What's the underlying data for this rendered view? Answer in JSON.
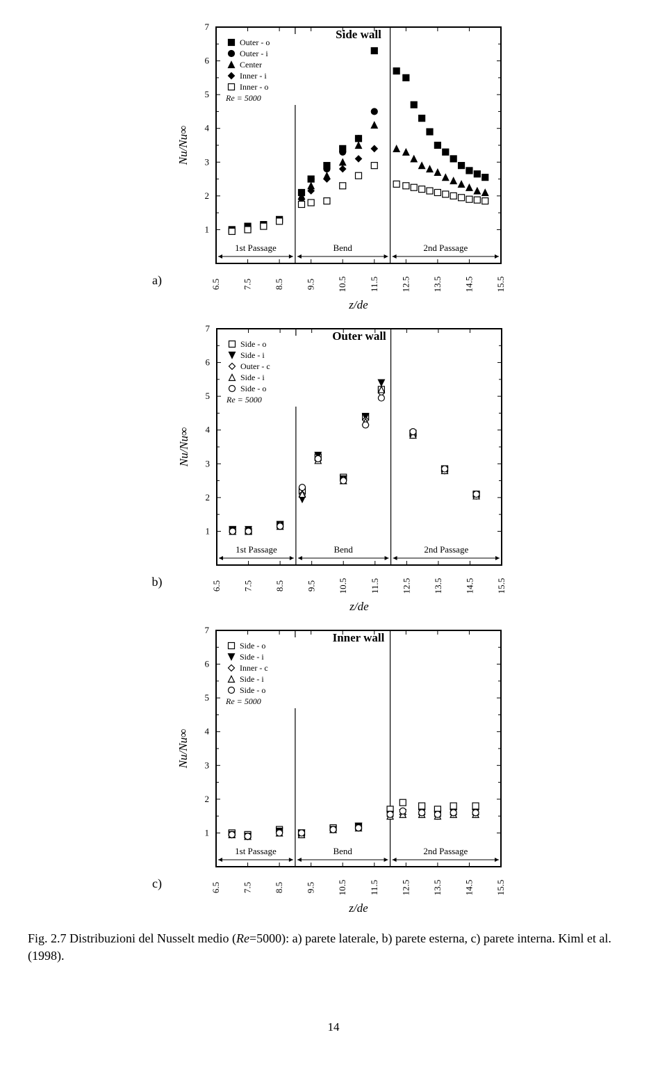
{
  "page_number": "14",
  "caption_html": "Fig. 2.7 Distribuzioni del Nusselt medio (Re=5000): a) parete laterale, b) parete esterna, c) parete interna. Kiml et al. (1998).",
  "caption_prefix": "Fig. 2.7 Distribuzioni del Nusselt medio (",
  "caption_re": "Re",
  "caption_mid": "=5000): a) parete laterale, b) parete esterna, c) parete interna. Kiml et al. (1998).",
  "common": {
    "xlabel": "z/de",
    "ylabel": "Nu/Nu∞",
    "xlim": [
      6.5,
      15.5
    ],
    "ylim": [
      0,
      7
    ],
    "xticks": [
      6.5,
      7.5,
      8.5,
      9.5,
      10.5,
      11.5,
      12.5,
      13.5,
      14.5,
      15.5
    ],
    "yticks": [
      1,
      2,
      3,
      4,
      5,
      6,
      7
    ],
    "region_dividers": [
      9.0,
      12.0
    ],
    "regions": [
      {
        "label": "1st Passage",
        "from": 6.5,
        "to": 9.0
      },
      {
        "label": "Bend",
        "from": 9.0,
        "to": 12.0
      },
      {
        "label": "2nd Passage",
        "from": 12.0,
        "to": 15.5
      }
    ],
    "background_color": "#ffffff",
    "grid_color": "#000000",
    "label_fontsize": 17,
    "tick_fontsize": 13,
    "title_fontsize": 17,
    "legend_fontsize": 12
  },
  "panels": {
    "a": {
      "label": "a)",
      "title": "Side wall",
      "re_text": "Re = 5000",
      "legend": [
        {
          "label": "Outer - o",
          "marker": "square",
          "fill": "#000000"
        },
        {
          "label": "Outer - i",
          "marker": "circle",
          "fill": "#000000"
        },
        {
          "label": "Center",
          "marker": "triangle",
          "fill": "#000000"
        },
        {
          "label": "Inner - i",
          "marker": "diamond",
          "fill": "#000000"
        },
        {
          "label": "Inner - o",
          "marker": "square",
          "fill": "none"
        }
      ],
      "series": [
        {
          "marker": "square",
          "fill": "#000000",
          "pts": [
            [
              7.0,
              1.0
            ],
            [
              7.5,
              1.1
            ],
            [
              8.0,
              1.15
            ],
            [
              8.5,
              1.3
            ],
            [
              9.2,
              2.1
            ],
            [
              9.5,
              2.5
            ],
            [
              10.0,
              2.9
            ],
            [
              10.5,
              3.4
            ],
            [
              11.0,
              3.7
            ],
            [
              11.5,
              6.3
            ],
            [
              12.2,
              5.7
            ],
            [
              12.5,
              5.5
            ],
            [
              12.75,
              4.7
            ],
            [
              13.0,
              4.3
            ],
            [
              13.25,
              3.9
            ],
            [
              13.5,
              3.5
            ],
            [
              13.75,
              3.3
            ],
            [
              14.0,
              3.1
            ],
            [
              14.25,
              2.9
            ],
            [
              14.5,
              2.75
            ],
            [
              14.75,
              2.65
            ],
            [
              15.0,
              2.55
            ]
          ]
        },
        {
          "marker": "circle",
          "fill": "#000000",
          "pts": [
            [
              9.2,
              2.1
            ],
            [
              9.5,
              2.5
            ],
            [
              10.0,
              2.8
            ],
            [
              10.5,
              3.3
            ],
            [
              11.0,
              3.7
            ],
            [
              11.5,
              4.5
            ]
          ]
        },
        {
          "marker": "triangle",
          "fill": "#000000",
          "pts": [
            [
              9.2,
              2.0
            ],
            [
              9.5,
              2.3
            ],
            [
              10.0,
              2.6
            ],
            [
              10.5,
              3.0
            ],
            [
              11.0,
              3.5
            ],
            [
              11.5,
              4.1
            ],
            [
              12.2,
              3.4
            ],
            [
              12.5,
              3.3
            ],
            [
              12.75,
              3.1
            ],
            [
              13.0,
              2.9
            ],
            [
              13.25,
              2.8
            ],
            [
              13.5,
              2.7
            ],
            [
              13.75,
              2.55
            ],
            [
              14.0,
              2.45
            ],
            [
              14.25,
              2.35
            ],
            [
              14.5,
              2.25
            ],
            [
              14.75,
              2.15
            ],
            [
              15.0,
              2.1
            ]
          ]
        },
        {
          "marker": "diamond",
          "fill": "#000000",
          "pts": [
            [
              9.2,
              1.9
            ],
            [
              9.5,
              2.15
            ],
            [
              10.0,
              2.5
            ],
            [
              10.5,
              2.8
            ],
            [
              11.0,
              3.1
            ],
            [
              11.5,
              3.4
            ]
          ]
        },
        {
          "marker": "square",
          "fill": "none",
          "pts": [
            [
              7.0,
              0.95
            ],
            [
              7.5,
              1.0
            ],
            [
              8.0,
              1.1
            ],
            [
              8.5,
              1.25
            ],
            [
              9.2,
              1.75
            ],
            [
              9.5,
              1.8
            ],
            [
              10.0,
              1.85
            ],
            [
              10.5,
              2.3
            ],
            [
              11.0,
              2.6
            ],
            [
              11.5,
              2.9
            ],
            [
              12.2,
              2.35
            ],
            [
              12.5,
              2.3
            ],
            [
              12.75,
              2.25
            ],
            [
              13.0,
              2.2
            ],
            [
              13.25,
              2.15
            ],
            [
              13.5,
              2.1
            ],
            [
              13.75,
              2.05
            ],
            [
              14.0,
              2.0
            ],
            [
              14.25,
              1.95
            ],
            [
              14.5,
              1.9
            ],
            [
              14.75,
              1.88
            ],
            [
              15.0,
              1.85
            ]
          ]
        }
      ]
    },
    "b": {
      "label": "b)",
      "title": "Outer wall",
      "re_text": "Re = 5000",
      "legend": [
        {
          "label": "Side - o",
          "marker": "square",
          "fill": "none"
        },
        {
          "label": "Side - i",
          "marker": "triangle-down",
          "fill": "#000000"
        },
        {
          "label": "Outer - c",
          "marker": "diamond",
          "fill": "none"
        },
        {
          "label": "Side - i",
          "marker": "triangle",
          "fill": "none"
        },
        {
          "label": "Side - o",
          "marker": "circle",
          "fill": "none"
        }
      ],
      "series": [
        {
          "marker": "square",
          "fill": "none",
          "pts": [
            [
              7.0,
              1.05
            ],
            [
              7.5,
              1.0
            ],
            [
              8.5,
              1.2
            ],
            [
              9.2,
              2.2
            ],
            [
              9.7,
              3.2
            ],
            [
              10.5,
              2.6
            ],
            [
              11.2,
              4.4
            ],
            [
              11.7,
              5.2
            ],
            [
              12.7,
              3.9
            ],
            [
              13.7,
              2.85
            ],
            [
              14.7,
              2.1
            ]
          ]
        },
        {
          "marker": "triangle-down",
          "fill": "#000000",
          "pts": [
            [
              7.0,
              1.05
            ],
            [
              7.5,
              1.05
            ],
            [
              8.5,
              1.2
            ],
            [
              9.2,
              1.95
            ],
            [
              9.7,
              3.25
            ],
            [
              10.5,
              2.55
            ],
            [
              11.2,
              4.4
            ],
            [
              11.7,
              5.4
            ],
            [
              12.7,
              3.9
            ],
            [
              13.7,
              2.8
            ],
            [
              14.7,
              2.05
            ]
          ]
        },
        {
          "marker": "diamond",
          "fill": "none",
          "pts": [
            [
              7.0,
              1.0
            ],
            [
              7.5,
              1.0
            ],
            [
              8.5,
              1.2
            ],
            [
              9.2,
              2.1
            ],
            [
              9.7,
              3.1
            ],
            [
              10.5,
              2.55
            ],
            [
              11.2,
              4.3
            ],
            [
              11.7,
              5.1
            ],
            [
              12.7,
              3.85
            ],
            [
              13.7,
              2.8
            ],
            [
              14.7,
              2.05
            ]
          ]
        },
        {
          "marker": "triangle",
          "fill": "none",
          "pts": [
            [
              7.0,
              1.0
            ],
            [
              7.5,
              1.0
            ],
            [
              8.5,
              1.15
            ],
            [
              9.2,
              2.1
            ],
            [
              9.7,
              3.1
            ],
            [
              10.5,
              2.5
            ],
            [
              11.2,
              4.25
            ],
            [
              11.7,
              5.2
            ],
            [
              12.7,
              3.85
            ],
            [
              13.7,
              2.8
            ],
            [
              14.7,
              2.05
            ]
          ]
        },
        {
          "marker": "circle",
          "fill": "none",
          "pts": [
            [
              7.0,
              1.0
            ],
            [
              7.5,
              1.0
            ],
            [
              8.5,
              1.15
            ],
            [
              9.2,
              2.3
            ],
            [
              9.7,
              3.15
            ],
            [
              10.5,
              2.5
            ],
            [
              11.2,
              4.15
            ],
            [
              11.7,
              4.95
            ],
            [
              12.7,
              3.95
            ],
            [
              13.7,
              2.85
            ],
            [
              14.7,
              2.1
            ]
          ]
        }
      ]
    },
    "c": {
      "label": "c)",
      "title": "Inner wall",
      "re_text": "Re = 5000",
      "legend": [
        {
          "label": "Side - o",
          "marker": "square",
          "fill": "none"
        },
        {
          "label": "Side - i",
          "marker": "triangle-down",
          "fill": "#000000"
        },
        {
          "label": "Inner - c",
          "marker": "diamond",
          "fill": "none"
        },
        {
          "label": "Side - i",
          "marker": "triangle",
          "fill": "none"
        },
        {
          "label": "Side - o",
          "marker": "circle",
          "fill": "none"
        }
      ],
      "series": [
        {
          "marker": "square",
          "fill": "none",
          "pts": [
            [
              7.0,
              1.0
            ],
            [
              7.5,
              0.95
            ],
            [
              8.5,
              1.1
            ],
            [
              9.2,
              1.0
            ],
            [
              10.2,
              1.15
            ],
            [
              11.0,
              1.2
            ],
            [
              12.0,
              1.7
            ],
            [
              12.4,
              1.9
            ],
            [
              13.0,
              1.8
            ],
            [
              13.5,
              1.7
            ],
            [
              14.0,
              1.8
            ],
            [
              14.7,
              1.8
            ]
          ]
        },
        {
          "marker": "triangle-down",
          "fill": "#000000",
          "pts": [
            [
              7.0,
              0.95
            ],
            [
              7.5,
              0.9
            ],
            [
              8.5,
              1.05
            ],
            [
              9.2,
              1.0
            ],
            [
              10.2,
              1.1
            ],
            [
              11.0,
              1.2
            ],
            [
              12.0,
              1.55
            ],
            [
              12.4,
              1.6
            ],
            [
              13.0,
              1.6
            ],
            [
              13.5,
              1.55
            ],
            [
              14.0,
              1.6
            ],
            [
              14.7,
              1.6
            ]
          ]
        },
        {
          "marker": "diamond",
          "fill": "none",
          "pts": [
            [
              7.0,
              0.95
            ],
            [
              7.5,
              0.9
            ],
            [
              8.5,
              1.0
            ],
            [
              9.2,
              0.95
            ],
            [
              10.2,
              1.1
            ],
            [
              11.0,
              1.15
            ],
            [
              12.0,
              1.5
            ],
            [
              12.4,
              1.55
            ],
            [
              13.0,
              1.55
            ],
            [
              13.5,
              1.5
            ],
            [
              14.0,
              1.55
            ],
            [
              14.7,
              1.55
            ]
          ]
        },
        {
          "marker": "triangle",
          "fill": "none",
          "pts": [
            [
              7.0,
              0.95
            ],
            [
              7.5,
              0.9
            ],
            [
              8.5,
              1.0
            ],
            [
              9.2,
              0.95
            ],
            [
              10.2,
              1.1
            ],
            [
              11.0,
              1.15
            ],
            [
              12.0,
              1.5
            ],
            [
              12.4,
              1.55
            ],
            [
              13.0,
              1.55
            ],
            [
              13.5,
              1.5
            ],
            [
              14.0,
              1.55
            ],
            [
              14.7,
              1.55
            ]
          ]
        },
        {
          "marker": "circle",
          "fill": "none",
          "pts": [
            [
              7.0,
              0.95
            ],
            [
              7.5,
              0.9
            ],
            [
              8.5,
              1.0
            ],
            [
              9.2,
              1.0
            ],
            [
              10.2,
              1.1
            ],
            [
              11.0,
              1.15
            ],
            [
              12.0,
              1.55
            ],
            [
              12.4,
              1.65
            ],
            [
              13.0,
              1.6
            ],
            [
              13.5,
              1.55
            ],
            [
              14.0,
              1.6
            ],
            [
              14.7,
              1.6
            ]
          ]
        }
      ]
    }
  }
}
